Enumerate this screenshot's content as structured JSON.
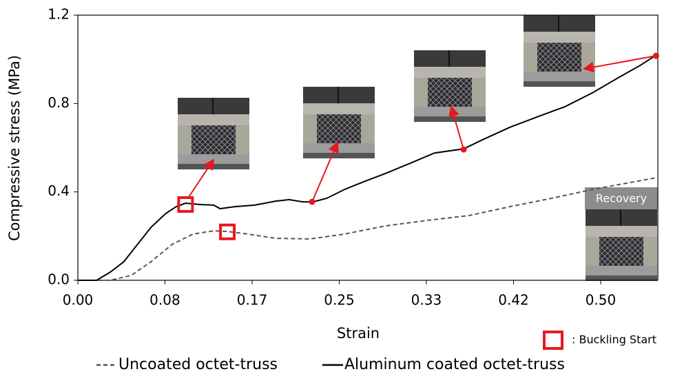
{
  "chart_data": {
    "type": "line",
    "xlabel": "Strain",
    "ylabel": "Compressive stress (MPa)",
    "xlim": [
      0,
      0.5547
    ],
    "ylim": [
      0,
      1.2
    ],
    "xticks": [
      {
        "value": 0,
        "label": "0.00"
      },
      {
        "value": 0.0833,
        "label": "0.08"
      },
      {
        "value": 0.1667,
        "label": "0.17"
      },
      {
        "value": 0.25,
        "label": "0.25"
      },
      {
        "value": 0.3333,
        "label": "0.33"
      },
      {
        "value": 0.4167,
        "label": "0.42"
      },
      {
        "value": 0.5,
        "label": "0.50"
      }
    ],
    "yticks": [
      {
        "value": 0,
        "label": "0.0"
      },
      0.4,
      0.8,
      1.2
    ],
    "series": [
      {
        "name": "Uncoated octet-truss",
        "color": "#555555",
        "linestyle": "dashed",
        "x": [
          0,
          0.031,
          0.051,
          0.07,
          0.09,
          0.11,
          0.13,
          0.143,
          0.163,
          0.189,
          0.222,
          0.255,
          0.294,
          0.334,
          0.374,
          0.413,
          0.453,
          0.492,
          0.553
        ],
        "values": [
          0,
          0,
          0.022,
          0.084,
          0.162,
          0.209,
          0.224,
          0.221,
          0.209,
          0.19,
          0.187,
          0.209,
          0.246,
          0.271,
          0.293,
          0.333,
          0.371,
          0.411,
          0.464
        ]
      },
      {
        "name": "Aluminum coated octet-truss",
        "color": "#000000",
        "linestyle": "solid",
        "x": [
          0,
          0.018,
          0.031,
          0.044,
          0.057,
          0.07,
          0.084,
          0.094,
          0.103,
          0.117,
          0.13,
          0.136,
          0.15,
          0.169,
          0.189,
          0.202,
          0.215,
          0.225,
          0.238,
          0.255,
          0.275,
          0.294,
          0.321,
          0.341,
          0.369,
          0.387,
          0.413,
          0.439,
          0.466,
          0.492,
          0.518,
          0.538,
          0.553
        ],
        "values": [
          0,
          0,
          0.037,
          0.084,
          0.162,
          0.24,
          0.302,
          0.333,
          0.349,
          0.343,
          0.34,
          0.324,
          0.333,
          0.34,
          0.358,
          0.365,
          0.355,
          0.355,
          0.371,
          0.411,
          0.449,
          0.483,
          0.536,
          0.576,
          0.595,
          0.636,
          0.692,
          0.739,
          0.786,
          0.848,
          0.92,
          0.973,
          1.019
        ]
      }
    ],
    "buckling_markers": [
      {
        "x": 0.103,
        "y": 0.343
      },
      {
        "x": 0.143,
        "y": 0.219
      }
    ],
    "photo_points": [
      {
        "x": 0.224,
        "y": 0.355
      },
      {
        "x": 0.369,
        "y": 0.592
      },
      {
        "x": 0.553,
        "y": 1.016
      }
    ],
    "marker_color": "#e8181e",
    "marker_legend": ": Buckling Start",
    "photo_label": "Recovery"
  }
}
